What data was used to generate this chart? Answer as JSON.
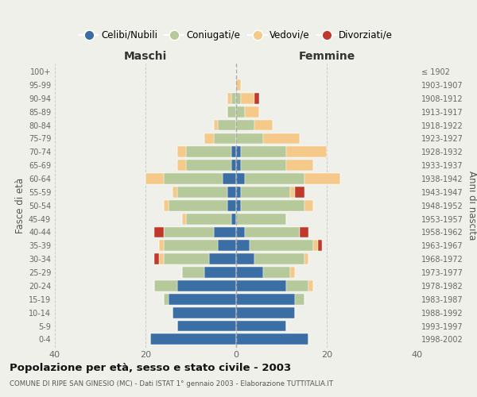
{
  "age_groups": [
    "0-4",
    "5-9",
    "10-14",
    "15-19",
    "20-24",
    "25-29",
    "30-34",
    "35-39",
    "40-44",
    "45-49",
    "50-54",
    "55-59",
    "60-64",
    "65-69",
    "70-74",
    "75-79",
    "80-84",
    "85-89",
    "90-94",
    "95-99",
    "100+"
  ],
  "birth_years": [
    "1998-2002",
    "1993-1997",
    "1988-1992",
    "1983-1987",
    "1978-1982",
    "1973-1977",
    "1968-1972",
    "1963-1967",
    "1958-1962",
    "1953-1957",
    "1948-1952",
    "1943-1947",
    "1938-1942",
    "1933-1937",
    "1928-1932",
    "1923-1927",
    "1918-1922",
    "1913-1917",
    "1908-1912",
    "1903-1907",
    "≤ 1902"
  ],
  "male": {
    "celibi": [
      19,
      13,
      14,
      15,
      13,
      7,
      6,
      4,
      5,
      1,
      2,
      2,
      3,
      1,
      1,
      0,
      0,
      0,
      0,
      0,
      0
    ],
    "coniugati": [
      0,
      0,
      0,
      1,
      5,
      5,
      10,
      12,
      11,
      10,
      13,
      11,
      13,
      10,
      10,
      5,
      4,
      2,
      1,
      0,
      0
    ],
    "vedovi": [
      0,
      0,
      0,
      0,
      0,
      0,
      1,
      1,
      0,
      1,
      1,
      1,
      4,
      2,
      2,
      2,
      1,
      0,
      1,
      0,
      0
    ],
    "divorziati": [
      0,
      0,
      0,
      0,
      0,
      0,
      1,
      0,
      2,
      0,
      0,
      0,
      0,
      0,
      0,
      0,
      0,
      0,
      0,
      0,
      0
    ]
  },
  "female": {
    "nubili": [
      16,
      11,
      13,
      13,
      11,
      6,
      4,
      3,
      2,
      0,
      1,
      1,
      2,
      1,
      1,
      0,
      0,
      0,
      0,
      0,
      0
    ],
    "coniugate": [
      0,
      0,
      0,
      2,
      5,
      6,
      11,
      14,
      12,
      11,
      14,
      11,
      13,
      10,
      10,
      6,
      4,
      2,
      1,
      0,
      0
    ],
    "vedove": [
      0,
      0,
      0,
      0,
      1,
      1,
      1,
      1,
      0,
      0,
      2,
      1,
      8,
      6,
      9,
      8,
      4,
      3,
      3,
      1,
      0
    ],
    "divorziate": [
      0,
      0,
      0,
      0,
      0,
      0,
      0,
      1,
      2,
      0,
      0,
      2,
      0,
      0,
      0,
      0,
      0,
      0,
      1,
      0,
      0
    ]
  },
  "colors": {
    "celibi": "#3A6EA5",
    "coniugati": "#B5C99A",
    "vedovi": "#F5C98A",
    "divorziati": "#C0392B"
  },
  "xlim": 40,
  "title": "Popolazione per età, sesso e stato civile - 2003",
  "subtitle": "COMUNE DI RIPE SAN GINESIO (MC) - Dati ISTAT 1° gennaio 2003 - Elaborazione TUTTITALIA.IT",
  "ylabel_left": "Fasce di età",
  "ylabel_right": "Anni di nascita",
  "xlabel_male": "Maschi",
  "xlabel_female": "Femmine",
  "bg_color": "#f0f0eb",
  "grid_color": "#cccccc"
}
